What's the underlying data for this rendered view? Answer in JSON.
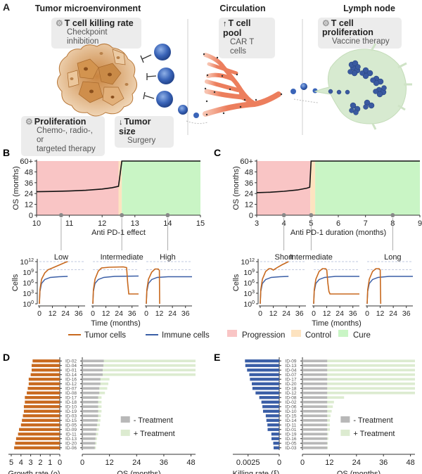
{
  "panels": {
    "a": {
      "letter": "A",
      "sections": [
        {
          "title": "Tumor microenvironment"
        },
        {
          "title": "Circulation"
        },
        {
          "title": "Lymph node"
        }
      ],
      "callouts": [
        {
          "icon": "gear-icon",
          "glyph": "⚙",
          "heading": "T cell killing rate",
          "sub": "Checkpoint inhibition"
        },
        {
          "icon": "up-arrow-icon",
          "glyph": "↑",
          "heading": "T cell pool",
          "sub": "CAR T cells"
        },
        {
          "icon": "gear-icon",
          "glyph": "⚙",
          "heading": "T cell proliferation",
          "sub": "Vaccine therapy"
        },
        {
          "icon": "gear-icon",
          "glyph": "⚙",
          "heading": "Proliferation",
          "sub": "Chemo-, radio-, or",
          "sub2": "targeted therapy"
        },
        {
          "icon": "down-arrow-icon",
          "glyph": "↓",
          "heading": "Tumor size",
          "sub": "Surgery"
        }
      ]
    },
    "b": {
      "letter": "B"
    },
    "c": {
      "letter": "C"
    },
    "d": {
      "letter": "D"
    },
    "e": {
      "letter": "E"
    }
  },
  "colors": {
    "progression": "#f9c5c5",
    "control": "#fde3c0",
    "cure": "#c9f5c5",
    "tumor": "#c8691e",
    "immune": "#3a5ea6",
    "growth_bar": "#c8691e",
    "killing_bar": "#3a5ea6",
    "no_treatment": "#b8b8b8",
    "treatment": "#dcebd0"
  },
  "legend": {
    "tumor_cells": "Tumor cells",
    "immune_cells": "Immune cells",
    "progression": "Progression",
    "control": "Control",
    "cure": "Cure",
    "minus_treatment": "- Treatment",
    "plus_treatment": "+ Treatment"
  },
  "chart_data": [
    {
      "id": "B-top",
      "type": "line",
      "xlabel": "Anti PD-1 effect",
      "ylabel": "OS (months)",
      "xlim": [
        10,
        15
      ],
      "ylim": [
        0,
        60
      ],
      "xticks": [
        "10",
        "11",
        "12",
        "13",
        "14",
        "15"
      ],
      "yticks": [
        "0",
        "12",
        "24",
        "36",
        "48",
        "60+"
      ],
      "regions": [
        {
          "name": "Progression",
          "from": 10,
          "to": 12.5
        },
        {
          "name": "Control",
          "from": 12.5,
          "to": 12.6
        },
        {
          "name": "Cure",
          "from": 12.6,
          "to": 15
        }
      ],
      "x": [
        10,
        10.5,
        11,
        11.5,
        12,
        12.3,
        12.5,
        12.6,
        13,
        14,
        15
      ],
      "y": [
        26,
        26.3,
        26.8,
        27.6,
        29,
        30.5,
        32,
        60,
        60,
        60,
        60
      ],
      "markers": [
        {
          "x": 10.75,
          "label": "Low"
        },
        {
          "x": 12.6,
          "label": "Intermediate"
        },
        {
          "x": 14,
          "label": "High"
        }
      ]
    },
    {
      "id": "C-top",
      "type": "line",
      "xlabel": "Anti PD-1 duration (months)",
      "ylabel": "OS (months)",
      "xlim": [
        3,
        9
      ],
      "ylim": [
        0,
        60
      ],
      "xticks": [
        "3",
        "4",
        "5",
        "6",
        "7",
        "8",
        "9"
      ],
      "yticks": [
        "0",
        "12",
        "24",
        "36",
        "48",
        "60+"
      ],
      "regions": [
        {
          "name": "Progression",
          "from": 3,
          "to": 4.97
        },
        {
          "name": "Control",
          "from": 4.97,
          "to": 5.15
        },
        {
          "name": "Cure",
          "from": 5.15,
          "to": 9
        }
      ],
      "x": [
        3,
        3.5,
        4,
        4.5,
        4.85,
        4.95,
        5.0,
        6,
        7,
        8,
        9
      ],
      "y": [
        25,
        25.5,
        26.5,
        28,
        30,
        31,
        60,
        60,
        60,
        60,
        60
      ],
      "markers": [
        {
          "x": 4,
          "label": "Short"
        },
        {
          "x": 5,
          "label": "Intermediate"
        },
        {
          "x": 8,
          "label": "Long"
        }
      ]
    },
    {
      "id": "B-bottom",
      "type": "line",
      "xlabel": "Time (months)",
      "ylabel": "Cells",
      "yscale": "log10",
      "ylim_exp": [
        0,
        12
      ],
      "ytick_exps": [
        0,
        3,
        6,
        9,
        12
      ],
      "xticks": [
        "0",
        "12",
        "24",
        "36"
      ],
      "xlim": [
        0,
        42
      ],
      "dashed_levels_exp": [
        9.7,
        12
      ],
      "subplots": [
        {
          "label": "Low",
          "tumor": {
            "x": [
              0,
              0.5,
              2,
              5,
              8,
              12,
              18,
              24,
              26
            ],
            "y": [
              0,
              4,
              7,
              8.8,
              9.7,
              10.2,
              11,
              11.8,
              12
            ]
          },
          "immune": {
            "x": [
              0,
              0.5,
              2,
              5,
              10,
              18,
              26
            ],
            "y": [
              0,
              3.5,
              5.8,
              6.9,
              7.5,
              7.7,
              7.8
            ]
          }
        },
        {
          "label": "Intermediate",
          "tumor": {
            "x": [
              0,
              0.5,
              2,
              5,
              8,
              15,
              28,
              31,
              32,
              33,
              42
            ],
            "y": [
              0,
              4,
              7,
              9.3,
              10.2,
              10.4,
              10.5,
              10.3,
              6,
              2.8,
              2.8
            ]
          },
          "immune": {
            "x": [
              0,
              0.5,
              2,
              5,
              10,
              20,
              42
            ],
            "y": [
              0,
              3.5,
              5.8,
              6.9,
              7.5,
              7.8,
              7.9
            ]
          }
        },
        {
          "label": "High",
          "tumor": {
            "x": [
              0,
              0.5,
              2,
              5,
              8,
              11,
              12,
              12.3
            ],
            "y": [
              0,
              4,
              7,
              9,
              9.9,
              9.9,
              9.5,
              0
            ]
          },
          "immune": {
            "x": [
              0,
              0.5,
              2,
              5,
              10,
              20,
              42
            ],
            "y": [
              0,
              3.5,
              5.8,
              6.9,
              7.5,
              7.7,
              7.7
            ]
          }
        }
      ]
    },
    {
      "id": "C-bottom",
      "type": "line",
      "xlabel": "Time (months)",
      "ylabel": "Cells",
      "yscale": "log10",
      "ylim_exp": [
        0,
        12
      ],
      "ytick_exps": [
        0,
        3,
        6,
        9,
        12
      ],
      "xticks": [
        "0",
        "12",
        "24",
        "36"
      ],
      "xlim": [
        0,
        42
      ],
      "dashed_levels_exp": [
        9.7,
        12
      ],
      "subplots": [
        {
          "label": "Short",
          "tumor": {
            "x": [
              0,
              0.5,
              2,
              5,
              8,
              10,
              12,
              16,
              20,
              26
            ],
            "y": [
              0,
              4,
              7,
              9.2,
              10,
              10,
              9.6,
              10.4,
              11.1,
              12
            ]
          },
          "immune": {
            "x": [
              0,
              0.5,
              2,
              5,
              10,
              18,
              26
            ],
            "y": [
              0,
              3.5,
              5.8,
              6.9,
              7.5,
              7.7,
              7.8
            ]
          }
        },
        {
          "label": "Intermediate",
          "tumor": {
            "x": [
              0,
              0.5,
              2,
              5,
              8,
              11,
              12,
              13,
              14,
              15,
              42
            ],
            "y": [
              0,
              4,
              7,
              9.2,
              10,
              10,
              9.6,
              6,
              3.5,
              2.8,
              2.8
            ]
          },
          "immune": {
            "x": [
              0,
              0.5,
              2,
              5,
              10,
              20,
              42
            ],
            "y": [
              0,
              3.5,
              5.8,
              6.9,
              7.5,
              7.8,
              7.8
            ]
          }
        },
        {
          "label": "Long",
          "tumor": {
            "x": [
              0,
              0.5,
              2,
              5,
              8,
              11,
              12,
              12.5
            ],
            "y": [
              0,
              4,
              7,
              9.2,
              10,
              10,
              9.6,
              0
            ]
          },
          "immune": {
            "x": [
              0,
              0.5,
              2,
              5,
              10,
              20,
              42
            ],
            "y": [
              0,
              3.5,
              5.8,
              6.9,
              7.5,
              7.8,
              7.8
            ]
          }
        }
      ]
    },
    {
      "id": "D",
      "type": "bar",
      "left_xlabel": "Growth rate (ρ)",
      "left_xlim": [
        5,
        0
      ],
      "left_xticks": [
        "5",
        "4",
        "3",
        "2",
        "1",
        "0"
      ],
      "right_xlabel": "OS (months)",
      "right_xlim": [
        0,
        50
      ],
      "right_xticks": [
        "0",
        "12",
        "24",
        "36",
        "48"
      ],
      "categories": [
        "ID-02",
        "ID-04",
        "ID-01",
        "ID-14",
        "ID-16",
        "ID-12",
        "ID-07",
        "ID-08",
        "ID-17",
        "ID-18",
        "ID-10",
        "ID-19",
        "ID-03",
        "ID-15",
        "ID-05",
        "ID-09",
        "ID-11",
        "ID-13",
        "ID-20",
        "ID-06"
      ],
      "growth_rate": [
        2.8,
        2.9,
        2.9,
        3.0,
        3.2,
        3.2,
        3.3,
        3.4,
        3.6,
        3.6,
        3.7,
        3.7,
        3.8,
        3.9,
        4.0,
        4.2,
        4.3,
        4.5,
        4.6,
        4.7
      ],
      "os_no_treatment": [
        9.5,
        9.3,
        9.0,
        9.0,
        8.0,
        8.0,
        7.5,
        7.5,
        7.0,
        7.0,
        7.0,
        7.0,
        7.0,
        6.8,
        6.5,
        6.3,
        6.0,
        5.8,
        5.7,
        5.5
      ],
      "os_treatment": [
        50,
        50,
        50,
        50,
        12,
        11.5,
        11,
        10,
        8.5,
        8.5,
        8.5,
        8.5,
        8.2,
        8,
        7.8,
        7.3,
        7,
        6.5,
        6.3,
        6
      ]
    },
    {
      "id": "E",
      "type": "bar",
      "left_xlabel": "Killing rate (ξ)",
      "left_xlim": [
        0.0035,
        0
      ],
      "left_xticks": [
        "0.0025",
        "0"
      ],
      "right_xlabel": "OS (months)",
      "right_xlim": [
        0,
        50
      ],
      "right_xticks": [
        "0",
        "12",
        "24",
        "36",
        "48"
      ],
      "categories": [
        "ID-09",
        "ID-13",
        "ID-04",
        "ID-07",
        "ID-17",
        "ID-20",
        "ID-18",
        "ID-12",
        "ID-08",
        "ID-02",
        "ID-06",
        "ID-10",
        "ID-15",
        "ID-14",
        "ID-11",
        "ID-01",
        "ID-19",
        "ID-16",
        "ID-05",
        "ID-03"
      ],
      "killing_rate": [
        0.00275,
        0.00272,
        0.00258,
        0.0024,
        0.00235,
        0.0022,
        0.00215,
        0.0019,
        0.0016,
        0.00143,
        0.00135,
        0.0013,
        0.00108,
        0.00103,
        0.00095,
        0.00093,
        0.00063,
        0.00062,
        0.00048,
        0.00045
      ],
      "os_no_treatment": [
        11,
        11,
        11,
        11,
        11,
        11,
        11,
        11,
        11,
        11,
        11,
        11,
        11,
        11,
        11,
        11,
        11,
        11,
        11,
        11
      ],
      "os_treatment": [
        50,
        50,
        50,
        50,
        50,
        50,
        50,
        50,
        18.5,
        14,
        13.5,
        13,
        12.5,
        12.2,
        12.2,
        12.2,
        11.5,
        11.5,
        11.3,
        11.3
      ]
    }
  ]
}
